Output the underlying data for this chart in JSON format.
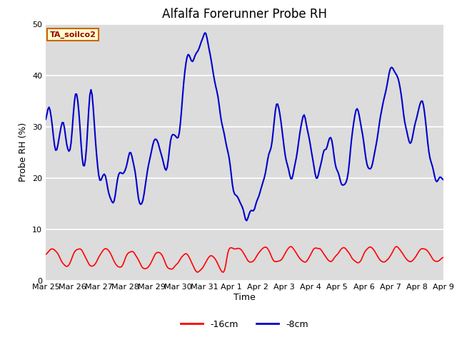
{
  "title": "Alfalfa Forerunner Probe RH",
  "xlabel": "Time",
  "ylabel": "Probe RH (%)",
  "ylim": [
    0,
    50
  ],
  "background_color": "#dcdcdc",
  "grid_color": "white",
  "legend_label_red": "-16cm",
  "legend_label_blue": "-8cm",
  "annotation_text": "TA_soilco2",
  "annotation_bg": "#ffffcc",
  "annotation_border": "#cc0000",
  "line_color_red": "#ff0000",
  "line_color_blue": "#0000cc",
  "title_fontsize": 12,
  "axis_label_fontsize": 9,
  "tick_fontsize": 8
}
